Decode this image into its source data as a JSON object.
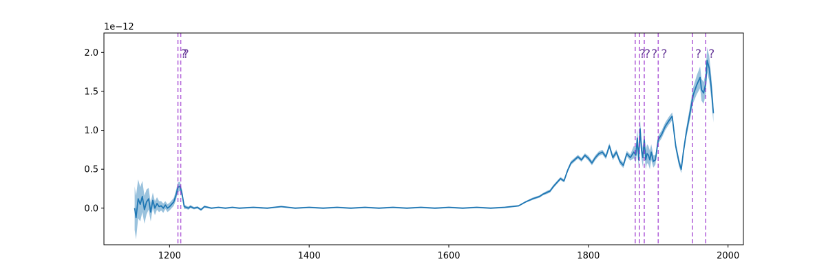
{
  "chart_data": {
    "type": "line",
    "title": "",
    "xlabel": "",
    "ylabel": "",
    "y_offset_text": "1e−12",
    "xlim": [
      1106,
      2022
    ],
    "ylim": [
      -0.47,
      2.25
    ],
    "y_scale_factor": 1e-12,
    "x_ticks": [
      1200,
      1400,
      1600,
      1800,
      2000
    ],
    "x_tick_labels": [
      "1200",
      "1400",
      "1600",
      "1800",
      "2000"
    ],
    "y_ticks": [
      0.0,
      0.5,
      1.0,
      1.5,
      2.0
    ],
    "y_tick_labels": [
      "0.0",
      "0.5",
      "1.0",
      "1.5",
      "2.0"
    ],
    "grid": false,
    "series": [
      {
        "color": "#1f77b4",
        "band_color": "#1f77b4",
        "x": [
          1150,
          1152,
          1155,
          1158,
          1161,
          1164,
          1167,
          1170,
          1173,
          1176,
          1179,
          1182,
          1185,
          1188,
          1191,
          1194,
          1197,
          1200,
          1203,
          1206,
          1209,
          1212,
          1215,
          1218,
          1221,
          1224,
          1227,
          1230,
          1235,
          1240,
          1245,
          1250,
          1260,
          1270,
          1280,
          1290,
          1300,
          1320,
          1340,
          1360,
          1380,
          1400,
          1420,
          1440,
          1460,
          1480,
          1500,
          1520,
          1540,
          1560,
          1580,
          1600,
          1620,
          1640,
          1660,
          1680,
          1690,
          1700,
          1710,
          1720,
          1730,
          1735,
          1740,
          1745,
          1750,
          1755,
          1760,
          1765,
          1770,
          1775,
          1780,
          1785,
          1790,
          1795,
          1800,
          1805,
          1810,
          1815,
          1820,
          1825,
          1830,
          1835,
          1840,
          1845,
          1850,
          1855,
          1860,
          1865,
          1868,
          1870,
          1872,
          1874,
          1876,
          1878,
          1880,
          1882,
          1884,
          1886,
          1888,
          1890,
          1893,
          1896,
          1900,
          1905,
          1910,
          1915,
          1920,
          1925,
          1930,
          1933,
          1936,
          1940,
          1945,
          1950,
          1955,
          1960,
          1962,
          1965,
          1968,
          1970,
          1973,
          1976,
          1979
        ],
        "y": [
          0.0,
          -0.12,
          0.12,
          0.05,
          0.15,
          -0.02,
          0.08,
          0.12,
          -0.05,
          0.1,
          0.0,
          0.06,
          0.02,
          0.03,
          0.0,
          0.04,
          0.0,
          0.02,
          0.05,
          0.08,
          0.16,
          0.27,
          0.28,
          0.18,
          0.02,
          0.01,
          0.0,
          0.02,
          0.0,
          0.01,
          -0.02,
          0.02,
          0.0,
          0.01,
          0.0,
          0.01,
          0.0,
          0.01,
          0.0,
          0.02,
          0.0,
          0.01,
          0.0,
          0.01,
          0.0,
          0.01,
          0.0,
          0.01,
          0.0,
          0.01,
          0.0,
          0.01,
          0.0,
          0.01,
          0.0,
          0.01,
          0.02,
          0.03,
          0.08,
          0.12,
          0.15,
          0.18,
          0.2,
          0.22,
          0.28,
          0.33,
          0.38,
          0.35,
          0.48,
          0.58,
          0.62,
          0.66,
          0.62,
          0.68,
          0.64,
          0.58,
          0.65,
          0.7,
          0.72,
          0.66,
          0.8,
          0.65,
          0.72,
          0.6,
          0.55,
          0.7,
          0.65,
          0.72,
          0.68,
          0.9,
          0.62,
          1.02,
          0.75,
          0.65,
          0.88,
          0.62,
          0.7,
          0.68,
          0.62,
          0.72,
          0.6,
          0.62,
          0.88,
          0.95,
          1.05,
          1.12,
          1.18,
          0.8,
          0.58,
          0.5,
          0.72,
          0.96,
          1.2,
          1.45,
          1.58,
          1.68,
          1.52,
          1.48,
          1.6,
          1.9,
          1.8,
          1.55,
          1.22
        ],
        "err": [
          0.28,
          0.28,
          0.25,
          0.22,
          0.2,
          0.18,
          0.16,
          0.14,
          0.12,
          0.1,
          0.09,
          0.08,
          0.07,
          0.06,
          0.06,
          0.05,
          0.05,
          0.05,
          0.05,
          0.05,
          0.06,
          0.06,
          0.06,
          0.05,
          0.03,
          0.02,
          0.02,
          0.02,
          0.015,
          0.015,
          0.015,
          0.015,
          0.01,
          0.01,
          0.01,
          0.01,
          0.01,
          0.01,
          0.01,
          0.01,
          0.01,
          0.01,
          0.01,
          0.01,
          0.01,
          0.01,
          0.01,
          0.01,
          0.01,
          0.01,
          0.01,
          0.01,
          0.01,
          0.01,
          0.01,
          0.01,
          0.01,
          0.01,
          0.01,
          0.015,
          0.015,
          0.015,
          0.02,
          0.02,
          0.02,
          0.02,
          0.02,
          0.02,
          0.025,
          0.025,
          0.025,
          0.025,
          0.025,
          0.025,
          0.03,
          0.03,
          0.03,
          0.03,
          0.03,
          0.03,
          0.035,
          0.035,
          0.035,
          0.035,
          0.035,
          0.035,
          0.04,
          0.08,
          0.1,
          0.12,
          0.12,
          0.12,
          0.12,
          0.12,
          0.12,
          0.12,
          0.12,
          0.12,
          0.12,
          0.1,
          0.08,
          0.06,
          0.05,
          0.05,
          0.05,
          0.05,
          0.05,
          0.05,
          0.05,
          0.05,
          0.05,
          0.06,
          0.08,
          0.1,
          0.12,
          0.14,
          0.14,
          0.14,
          0.14,
          0.16,
          0.16,
          0.14,
          0.12
        ]
      }
    ],
    "vlines": {
      "color": "#9932cc",
      "x": [
        1212,
        1216,
        1867,
        1873,
        1880,
        1900,
        1949,
        1968
      ]
    },
    "annotations": [
      {
        "text": "?",
        "x": 1216,
        "y": 1.93
      },
      {
        "text": "?",
        "x": 1219,
        "y": 1.93
      },
      {
        "text": "?",
        "x": 1873,
        "y": 1.93
      },
      {
        "text": "?",
        "x": 1880,
        "y": 1.93
      },
      {
        "text": "?",
        "x": 1890,
        "y": 1.93
      },
      {
        "text": "?",
        "x": 1904,
        "y": 1.93
      },
      {
        "text": "?",
        "x": 1953,
        "y": 1.93
      },
      {
        "text": "?",
        "x": 1972,
        "y": 1.93
      }
    ]
  }
}
